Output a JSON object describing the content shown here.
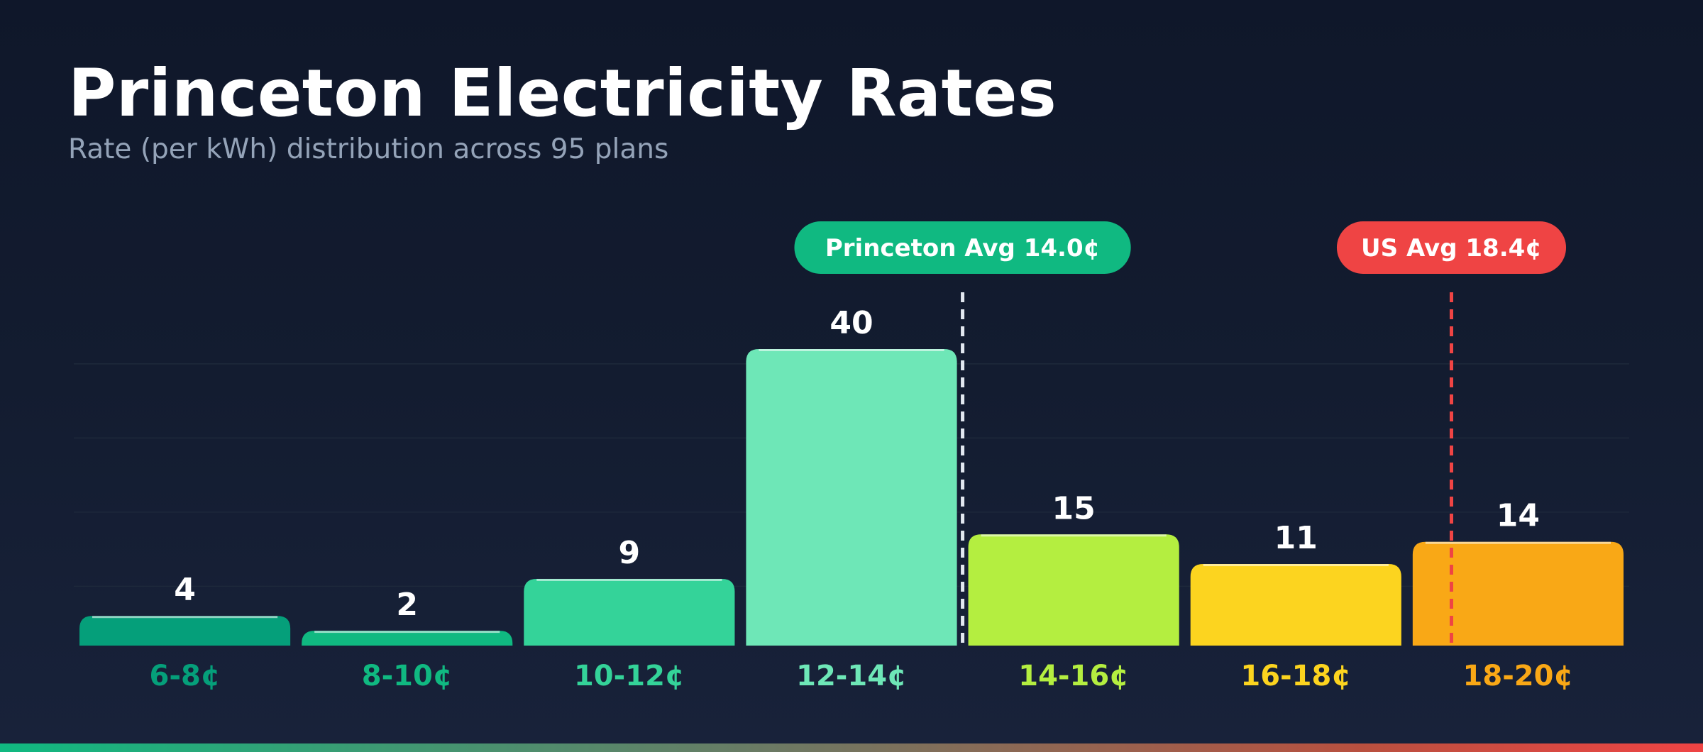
{
  "title": "Princeton Electricity Rates",
  "subtitle": "Rate (per kWh) distribution across 95 plans",
  "chart_data": {
    "type": "bar",
    "title": "Princeton Electricity Rates",
    "subtitle": "Rate (per kWh) distribution across 95 plans",
    "categories": [
      "6-8¢",
      "8-10¢",
      "10-12¢",
      "12-14¢",
      "14-16¢",
      "16-18¢",
      "18-20¢"
    ],
    "bin_ranges": [
      [
        6,
        8
      ],
      [
        8,
        10
      ],
      [
        10,
        12
      ],
      [
        12,
        14
      ],
      [
        14,
        16
      ],
      [
        16,
        18
      ],
      [
        18,
        20
      ]
    ],
    "values": [
      4,
      2,
      9,
      40,
      15,
      11,
      14
    ],
    "colors": [
      "#059f7a",
      "#10b981",
      "#34d399",
      "#6ee7b7",
      "#b4ee40",
      "#fcd41f",
      "#f9a816"
    ],
    "ylim": [
      0,
      40
    ],
    "grid": true,
    "reference_lines": [
      {
        "label": "Princeton Avg 14.0¢",
        "value": 14.0,
        "color": "#10b981",
        "line_color": "#e2e8f0"
      },
      {
        "label": "US Avg 18.4¢",
        "value": 18.4,
        "color": "#ef4444",
        "line_color": "#ef4444"
      }
    ]
  }
}
